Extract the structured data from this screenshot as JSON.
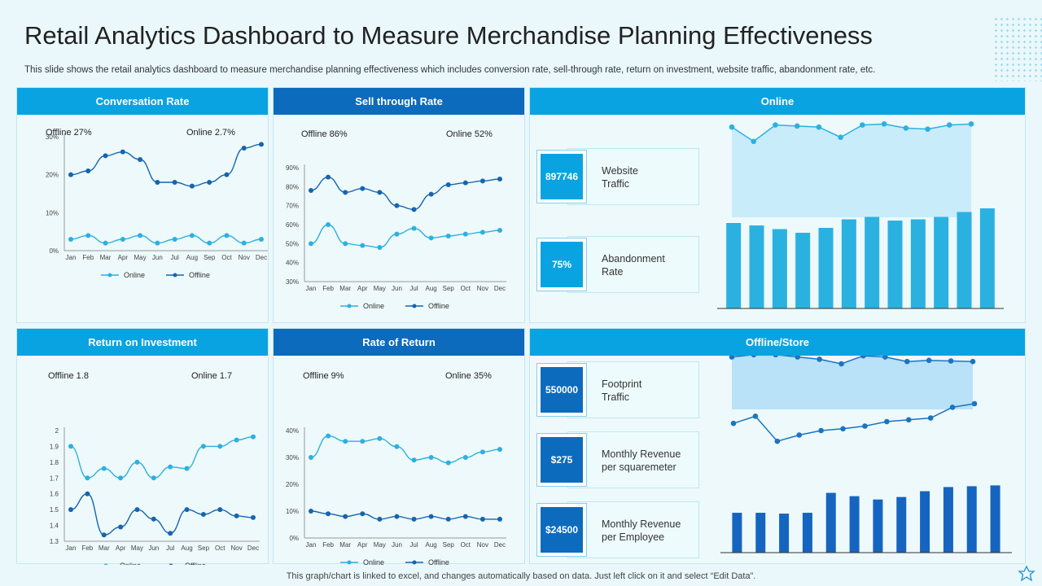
{
  "title": "Retail Analytics Dashboard to Measure Merchandise Planning Effectiveness",
  "subtitle": "This slide shows the retail analytics dashboard to measure merchandise planning effectiveness which includes conversion rate, sell-through rate, return on investment, website traffic, abandonment rate, etc.",
  "footer": "This graph/chart is linked to excel,  and changes automatically based on data. Just left click on it and select “Edit Data”.",
  "colors": {
    "light": "#0aa3e2",
    "dark": "#0d6bbd",
    "online": "#2bb1e0",
    "offline": "#1565b0"
  },
  "panels": {
    "conversion": {
      "header": "Conversation Rate",
      "offline_stat": "Offline 27%",
      "online_stat": "Online 2.7%"
    },
    "sellthrough": {
      "header": "Sell through Rate",
      "offline_stat": "Offline 86%",
      "online_stat": "Online 52%"
    },
    "online": {
      "header": "Online"
    },
    "roi": {
      "header": "Return on Investment",
      "offline_stat": "Offline 1.8",
      "online_stat": "Online 1.7"
    },
    "ror": {
      "header": "Rate of Return",
      "offline_stat": "Offline  9%",
      "online_stat": "Online  35%"
    },
    "store": {
      "header": "Offline/Store"
    }
  },
  "kpis": {
    "website_traffic": {
      "value": "897746",
      "label_line1": "Website",
      "label_line2": "Traffic"
    },
    "abandonment": {
      "value": "75%",
      "label_line1": "Abandonment",
      "label_line2": "Rate"
    },
    "footprint": {
      "value": "550000",
      "label_line1": "Footprint",
      "label_line2": "Traffic"
    },
    "rev_sqm": {
      "value": "$275",
      "label_line1": "Monthly Revenue",
      "label_line2": "per squaremeter"
    },
    "rev_emp": {
      "value": "$24500",
      "label_line1": "Monthly Revenue",
      "label_line2": "per Employee"
    }
  },
  "chart_data": [
    {
      "id": "conversion",
      "type": "line",
      "categories": [
        "Jan",
        "Feb",
        "Mar",
        "Apr",
        "May",
        "Jun",
        "Jul",
        "Aug",
        "Sep",
        "Oct",
        "Nov",
        "Dec"
      ],
      "ylim": [
        0,
        30
      ],
      "yticks": [
        "0%",
        "10%",
        "20%",
        "30%"
      ],
      "ytick_values": [
        0,
        10,
        20,
        30
      ],
      "series": [
        {
          "name": "Online",
          "values": [
            3,
            4,
            2,
            3,
            4,
            2,
            3,
            4,
            2,
            4,
            2,
            3
          ]
        },
        {
          "name": "Offline",
          "values": [
            20,
            21,
            25,
            26,
            24,
            18,
            18,
            17,
            18,
            20,
            27,
            28
          ]
        }
      ],
      "legend": [
        "Online",
        "Offline"
      ]
    },
    {
      "id": "sellthrough",
      "type": "line",
      "categories": [
        "Jan",
        "Feb",
        "Mar",
        "Apr",
        "May",
        "Jun",
        "Jul",
        "Aug",
        "Sep",
        "Oct",
        "Nov",
        "Dec"
      ],
      "ylim": [
        30,
        90
      ],
      "yticks": [
        "30%",
        "40%",
        "50%",
        "60%",
        "70%",
        "80%",
        "90%"
      ],
      "ytick_values": [
        30,
        40,
        50,
        60,
        70,
        80,
        90
      ],
      "series": [
        {
          "name": "Online",
          "values": [
            50,
            60,
            50,
            49,
            48,
            55,
            58,
            53,
            54,
            55,
            56,
            57
          ]
        },
        {
          "name": "Offline",
          "values": [
            78,
            85,
            77,
            79,
            77,
            70,
            68,
            76,
            81,
            82,
            83,
            84
          ]
        }
      ],
      "legend": [
        "Online",
        "Offline"
      ]
    },
    {
      "id": "roi",
      "type": "line",
      "categories": [
        "Jan",
        "Feb",
        "Mar",
        "Apr",
        "May",
        "Jun",
        "Jul",
        "Aug",
        "Sep",
        "Oct",
        "Nov",
        "Dec"
      ],
      "ylim": [
        1.3,
        2
      ],
      "yticks": [
        "1.3",
        "1.4",
        "1.5",
        "1.6",
        "1.7",
        "1.8",
        "1.9",
        "2"
      ],
      "ytick_values": [
        1.3,
        1.4,
        1.5,
        1.6,
        1.7,
        1.8,
        1.9,
        2
      ],
      "series": [
        {
          "name": "Online",
          "values": [
            1.9,
            1.7,
            1.76,
            1.7,
            1.8,
            1.7,
            1.77,
            1.76,
            1.9,
            1.9,
            1.94,
            1.96
          ]
        },
        {
          "name": "Offline",
          "values": [
            1.5,
            1.6,
            1.34,
            1.39,
            1.5,
            1.44,
            1.35,
            1.5,
            1.47,
            1.5,
            1.46,
            1.45
          ]
        }
      ],
      "legend": [
        "Online",
        "Offline"
      ]
    },
    {
      "id": "ror",
      "type": "line",
      "categories": [
        "Jan",
        "Feb",
        "Mar",
        "Apr",
        "May",
        "Jun",
        "Jul",
        "Aug",
        "Sep",
        "Oct",
        "Nov",
        "Dec"
      ],
      "ylim": [
        0,
        40
      ],
      "yticks": [
        "0%",
        "10%",
        "20%",
        "30%",
        "40%"
      ],
      "ytick_values": [
        0,
        10,
        20,
        30,
        40
      ],
      "series": [
        {
          "name": "Online",
          "values": [
            30,
            38,
            36,
            36,
            37,
            34,
            29,
            30,
            28,
            30,
            32,
            33
          ]
        },
        {
          "name": "Offline",
          "values": [
            10,
            9,
            8,
            9,
            7,
            8,
            7,
            8,
            7,
            8,
            7,
            7
          ]
        }
      ],
      "legend": [
        "Online",
        "Offline"
      ]
    },
    {
      "id": "online_traffic",
      "type": "area",
      "values": [
        8.8,
        7.4,
        9.0,
        8.9,
        8.8,
        7.8,
        9.0,
        9.1,
        8.7,
        8.6,
        9.0,
        9.1
      ],
      "ylim": [
        0,
        10
      ]
    },
    {
      "id": "online_abandon",
      "type": "bar",
      "values": [
        70,
        68,
        65,
        62,
        66,
        73,
        75,
        72,
        73,
        75,
        79,
        82
      ],
      "ylim": [
        0,
        100
      ]
    },
    {
      "id": "store_footprint",
      "type": "area",
      "values": [
        9.2,
        9.6,
        9.6,
        9.2,
        8.8,
        8.0,
        9.4,
        9.2,
        8.4,
        8.6,
        8.5,
        8.4
      ],
      "ylim": [
        0,
        10
      ]
    },
    {
      "id": "store_rev_sqm",
      "type": "line",
      "values": [
        6.8,
        7.6,
        4.8,
        5.5,
        6.0,
        6.2,
        6.5,
        7.0,
        7.2,
        7.4,
        8.6,
        9.0
      ],
      "ylim": [
        0,
        10
      ]
    },
    {
      "id": "store_rev_emp",
      "type": "bar",
      "values": [
        48,
        48,
        47,
        48,
        72,
        68,
        64,
        67,
        74,
        79,
        80,
        81
      ],
      "ylim": [
        0,
        100
      ]
    }
  ]
}
